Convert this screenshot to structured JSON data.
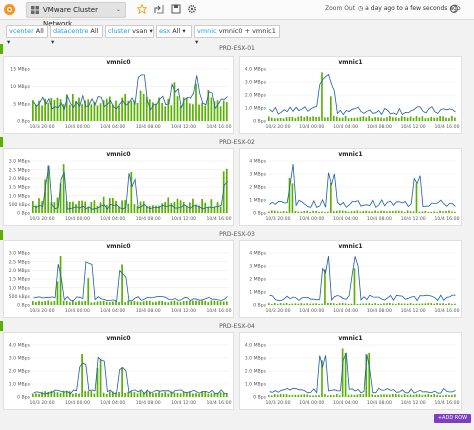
{
  "toolbar": {
    "dashboard_title": "VMware Cluster Network",
    "zoom_out": "Zoom Out",
    "time_range": "a day ago to a few seconds ago",
    "icons": [
      "grafana-logo-icon",
      "star-icon",
      "share-icon",
      "save-icon",
      "settings-icon",
      "clock-icon",
      "refresh-icon"
    ]
  },
  "variables": [
    {
      "label": "vcenter",
      "value": "All"
    },
    {
      "label": "datacentre",
      "value": "All"
    },
    {
      "label": "cluster",
      "value": "vsan"
    },
    {
      "label": "esx",
      "value": "All"
    },
    {
      "label": "vmnic",
      "value": "vmnic0 + vmnic1"
    }
  ],
  "rows": [
    {
      "title": "PRD-ESX-01",
      "panels": [
        {
          "title": "vmnic0",
          "yticks": [
            "15 MBps",
            "10 MBps",
            "5 MBps",
            "0 Bps"
          ],
          "xticks": [
            "10/3 20:00",
            "10/4 00:00",
            "10/4 04:00",
            "10/4 08:00",
            "10/4 12:00",
            "10/4 16:00"
          ]
        },
        {
          "title": "vmnic1",
          "yticks": [
            "4.0 MBps",
            "3.0 MBps",
            "2.0 MBps",
            "1.0 MBps",
            "0 Bps"
          ],
          "xticks": [
            "10/3 20:00",
            "10/4 00:00",
            "10/4 04:00",
            "10/4 08:00",
            "10/4 12:00",
            "10/4 16:00"
          ]
        }
      ]
    },
    {
      "title": "PRD-ESX-02",
      "panels": [
        {
          "title": "vmnic0",
          "yticks": [
            "3.0 MBps",
            "2.5 MBps",
            "2.0 MBps",
            "1.5 MBps",
            "1.0 MBps",
            "500 kBps",
            "0 Bps"
          ],
          "xticks": [
            "10/3 20:00",
            "10/4 00:00",
            "10/4 04:00",
            "10/4 08:00",
            "10/4 12:00",
            "10/4 16:00"
          ]
        },
        {
          "title": "vmnic1",
          "yticks": [
            "4 MBps",
            "3 MBps",
            "2 MBps",
            "1 MBps",
            "0 Bps"
          ],
          "xticks": [
            "10/3 20:00",
            "10/4 00:00",
            "10/4 04:00",
            "10/4 08:00",
            "10/4 12:00",
            "10/4 16:00"
          ]
        }
      ]
    },
    {
      "title": "PRD-ESX-03",
      "panels": [
        {
          "title": "vmnic0",
          "yticks": [
            "3.0 MBps",
            "2.5 MBps",
            "2.0 MBps",
            "1.5 MBps",
            "1.0 MBps",
            "500 kBps",
            "0 Bps"
          ],
          "xticks": [
            "10/3 20:00",
            "10/4 00:00",
            "10/4 04:00",
            "10/4 08:00",
            "10/4 12:00",
            "10/4 16:00"
          ]
        },
        {
          "title": "vmnic1",
          "yticks": [
            "4 MBps",
            "3 MBps",
            "2 MBps",
            "1 MBps",
            "0 Bps"
          ],
          "xticks": [
            "10/3 20:00",
            "10/4 00:00",
            "10/4 04:00",
            "10/4 08:00",
            "10/4 12:00",
            "10/4 16:00"
          ]
        }
      ]
    },
    {
      "title": "PRD-ESX-04",
      "panels": [
        {
          "title": "vmnic0",
          "yticks": [
            "4.0 MBps",
            "3.0 MBps",
            "2.0 MBps",
            "1.0 MBps",
            "0 Bps"
          ],
          "xticks": [
            "10/3 20:00",
            "10/4 00:00",
            "10/4 04:00",
            "10/4 08:00",
            "10/4 12:00",
            "10/4 16:00"
          ]
        },
        {
          "title": "vmnic1",
          "yticks": [
            "4.0 MBps",
            "3.0 MBps",
            "2.0 MBps",
            "1.0 MBps",
            "0 Bps"
          ],
          "xticks": [
            "10/3 20:00",
            "10/4 00:00",
            "10/4 04:00",
            "10/4 08:00",
            "10/4 12:00",
            "10/4 16:00"
          ]
        }
      ]
    }
  ],
  "add_row_label": "+ADD ROW",
  "colors": {
    "bar": "#58b000",
    "line": "#1f5fa6",
    "accent": "#1f9de6",
    "add_row": "#7b3fbf"
  }
}
